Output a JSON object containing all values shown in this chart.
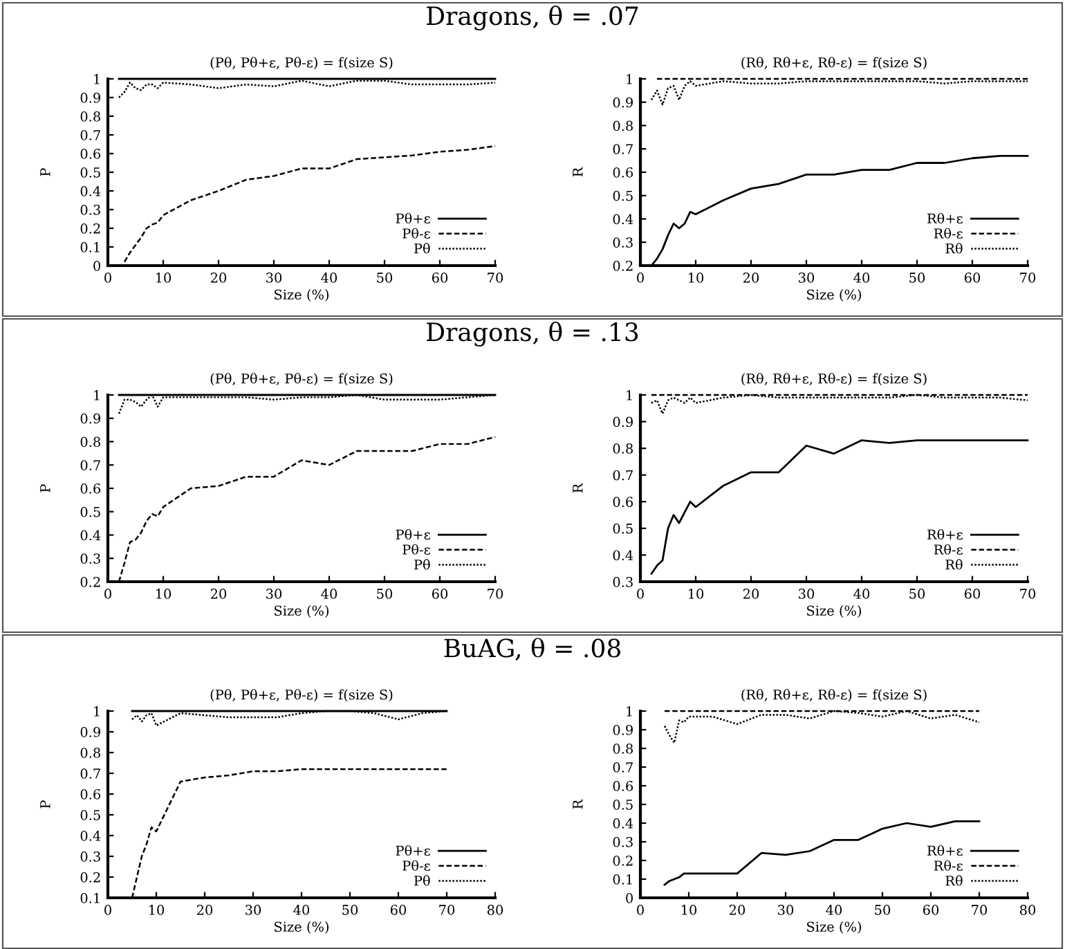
{
  "chart_data": [
    {
      "type": "line",
      "title": "Dragons, θ = .07",
      "subtitle": "(Pθ, Pθ+ε, Pθ-ε) = f(size S)",
      "xlabel": "Size (%)",
      "ylabel": "P",
      "xlim": [
        0,
        70
      ],
      "xticks": [
        0,
        10,
        20,
        30,
        40,
        50,
        60,
        70
      ],
      "ylim": [
        0,
        1
      ],
      "yticks": [
        0,
        0.1,
        0.2,
        0.3,
        0.4,
        0.5,
        0.6,
        0.7,
        0.8,
        0.9,
        1
      ],
      "legend": "bottom right",
      "grid": false,
      "x": [
        2,
        3,
        4,
        5,
        6,
        7,
        8,
        9,
        10,
        15,
        20,
        25,
        30,
        35,
        40,
        45,
        50,
        55,
        60,
        65,
        70
      ],
      "series": [
        {
          "name": "Pθ+ε",
          "color": "#000000",
          "line_style": "solid",
          "values": [
            1,
            1,
            1,
            1,
            1,
            1,
            1,
            1,
            1,
            1,
            1,
            1,
            1,
            1,
            1,
            1,
            1,
            1,
            1,
            1,
            1
          ]
        },
        {
          "name": "Pθ-ε",
          "color": "#000000",
          "line_style": "dashed",
          "values": [
            null,
            0.02,
            0.07,
            0.11,
            0.15,
            0.2,
            0.22,
            0.23,
            0.27,
            0.35,
            0.4,
            0.46,
            0.48,
            0.52,
            0.52,
            0.57,
            0.58,
            0.59,
            0.61,
            0.62,
            0.64
          ]
        },
        {
          "name": "Pθ",
          "color": "#000000",
          "line_style": "dotted",
          "values": [
            0.9,
            0.93,
            0.98,
            0.95,
            0.94,
            0.97,
            0.97,
            0.95,
            0.98,
            0.97,
            0.95,
            0.97,
            0.96,
            0.99,
            0.96,
            0.99,
            0.99,
            0.97,
            0.97,
            0.97,
            0.98
          ]
        }
      ]
    },
    {
      "type": "line",
      "subtitle": "(Rθ, Rθ+ε, Rθ-ε) = f(size S)",
      "xlabel": "Size (%)",
      "ylabel": "R",
      "xlim": [
        0,
        70
      ],
      "xticks": [
        0,
        10,
        20,
        30,
        40,
        50,
        60,
        70
      ],
      "ylim": [
        0.2,
        1
      ],
      "yticks": [
        0.2,
        0.3,
        0.4,
        0.5,
        0.6,
        0.7,
        0.8,
        0.9,
        1
      ],
      "legend": "bottom right",
      "grid": false,
      "x": [
        2,
        3,
        4,
        5,
        6,
        7,
        8,
        9,
        10,
        15,
        20,
        25,
        30,
        35,
        40,
        45,
        50,
        55,
        60,
        65,
        70
      ],
      "series": [
        {
          "name": "Rθ+ε",
          "color": "#000000",
          "line_style": "solid",
          "values": [
            0.2,
            0.23,
            0.27,
            0.33,
            0.38,
            0.36,
            0.38,
            0.43,
            0.42,
            0.48,
            0.53,
            0.55,
            0.59,
            0.59,
            0.61,
            0.61,
            0.64,
            0.64,
            0.66,
            0.67,
            0.67
          ]
        },
        {
          "name": "Rθ-ε",
          "color": "#000000",
          "line_style": "dashed",
          "values": [
            null,
            1,
            1,
            1,
            1,
            1,
            1,
            1,
            1,
            1,
            1,
            1,
            1,
            1,
            1,
            1,
            1,
            1,
            1,
            1,
            1
          ]
        },
        {
          "name": "Rθ",
          "color": "#000000",
          "line_style": "dotted",
          "values": [
            0.91,
            0.95,
            0.89,
            0.96,
            0.97,
            0.91,
            0.97,
            0.99,
            0.97,
            0.99,
            0.98,
            0.98,
            0.99,
            0.99,
            0.99,
            0.99,
            0.99,
            0.98,
            0.99,
            0.99,
            0.99
          ]
        }
      ]
    },
    {
      "type": "line",
      "title": "Dragons, θ = .13",
      "subtitle": "(Pθ, Pθ+ε, Pθ-ε) = f(size S)",
      "xlabel": "Size (%)",
      "ylabel": "P",
      "xlim": [
        0,
        70
      ],
      "xticks": [
        0,
        10,
        20,
        30,
        40,
        50,
        60,
        70
      ],
      "ylim": [
        0.2,
        1
      ],
      "yticks": [
        0.2,
        0.3,
        0.4,
        0.5,
        0.6,
        0.7,
        0.8,
        0.9,
        1
      ],
      "legend": "bottom right",
      "grid": false,
      "x": [
        2,
        3,
        4,
        5,
        6,
        7,
        8,
        9,
        10,
        15,
        20,
        25,
        30,
        35,
        40,
        45,
        50,
        55,
        60,
        65,
        70
      ],
      "series": [
        {
          "name": "Pθ+ε",
          "color": "#000000",
          "line_style": "solid",
          "values": [
            1,
            1,
            1,
            1,
            1,
            1,
            1,
            1,
            1,
            1,
            1,
            1,
            1,
            1,
            1,
            1,
            1,
            1,
            1,
            1,
            1
          ]
        },
        {
          "name": "Pθ-ε",
          "color": "#000000",
          "line_style": "dashed",
          "values": [
            0.2,
            0.28,
            0.37,
            0.38,
            0.41,
            0.46,
            0.49,
            0.48,
            0.52,
            0.6,
            0.61,
            0.65,
            0.65,
            0.72,
            0.7,
            0.76,
            0.76,
            0.76,
            0.79,
            0.79,
            0.82
          ]
        },
        {
          "name": "Pθ",
          "color": "#000000",
          "line_style": "dotted",
          "values": [
            0.92,
            0.98,
            0.98,
            0.97,
            0.95,
            0.98,
            1,
            0.95,
            0.99,
            0.99,
            0.99,
            0.99,
            0.98,
            0.99,
            0.99,
            1,
            0.98,
            0.98,
            0.98,
            0.99,
            1
          ]
        }
      ]
    },
    {
      "type": "line",
      "subtitle": "(Rθ, Rθ+ε, Rθ-ε) = f(size S)",
      "xlabel": "Size (%)",
      "ylabel": "R",
      "xlim": [
        0,
        70
      ],
      "xticks": [
        0,
        10,
        20,
        30,
        40,
        50,
        60,
        70
      ],
      "ylim": [
        0.3,
        1
      ],
      "yticks": [
        0.3,
        0.4,
        0.5,
        0.6,
        0.7,
        0.8,
        0.9,
        1
      ],
      "legend": "bottom right",
      "grid": false,
      "x": [
        2,
        3,
        4,
        5,
        6,
        7,
        8,
        9,
        10,
        15,
        20,
        25,
        30,
        35,
        40,
        45,
        50,
        55,
        60,
        65,
        70
      ],
      "series": [
        {
          "name": "Rθ+ε",
          "color": "#000000",
          "line_style": "solid",
          "values": [
            0.33,
            0.36,
            0.38,
            0.5,
            0.55,
            0.52,
            0.56,
            0.6,
            0.58,
            0.66,
            0.71,
            0.71,
            0.81,
            0.78,
            0.83,
            0.82,
            0.83,
            0.83,
            0.83,
            0.83,
            0.83
          ]
        },
        {
          "name": "Rθ-ε",
          "color": "#000000",
          "line_style": "dashed",
          "values": [
            1,
            1,
            1,
            1,
            1,
            1,
            1,
            1,
            1,
            1,
            1,
            1,
            1,
            1,
            1,
            1,
            1,
            1,
            1,
            1,
            1
          ]
        },
        {
          "name": "Rθ",
          "color": "#000000",
          "line_style": "dotted",
          "values": [
            0.97,
            0.98,
            0.93,
            0.98,
            0.99,
            0.98,
            0.97,
            0.99,
            0.97,
            0.99,
            1,
            0.99,
            0.99,
            0.99,
            0.99,
            0.99,
            1,
            0.99,
            0.99,
            0.99,
            0.98
          ]
        }
      ]
    },
    {
      "type": "line",
      "title": "BuAG, θ = .08",
      "subtitle": "(Pθ, Pθ+ε, Pθ-ε) = f(size S)",
      "xlabel": "Size (%)",
      "ylabel": "P",
      "xlim": [
        0,
        80
      ],
      "xticks": [
        0,
        10,
        20,
        30,
        40,
        50,
        60,
        70,
        80
      ],
      "ylim": [
        0.1,
        1
      ],
      "yticks": [
        0.1,
        0.2,
        0.3,
        0.4,
        0.5,
        0.6,
        0.7,
        0.8,
        0.9,
        1
      ],
      "legend": "bottom right",
      "grid": false,
      "x": [
        5,
        6,
        7,
        8,
        9,
        10,
        15,
        20,
        25,
        30,
        35,
        40,
        45,
        50,
        55,
        60,
        65,
        70
      ],
      "series": [
        {
          "name": "Pθ+ε",
          "color": "#000000",
          "line_style": "solid",
          "values": [
            1,
            1,
            1,
            1,
            1,
            1,
            1,
            1,
            1,
            1,
            1,
            1,
            1,
            1,
            1,
            1,
            1,
            1
          ]
        },
        {
          "name": "Pθ-ε",
          "color": "#000000",
          "line_style": "dashed",
          "values": [
            0.1,
            0.2,
            0.3,
            0.36,
            0.44,
            0.42,
            0.66,
            0.68,
            0.69,
            0.71,
            0.71,
            0.72,
            0.72,
            0.72,
            0.72,
            0.72,
            0.72,
            0.72
          ]
        },
        {
          "name": "Pθ",
          "color": "#000000",
          "line_style": "dotted",
          "values": [
            0.96,
            0.98,
            0.95,
            0.98,
            0.99,
            0.93,
            0.99,
            0.98,
            0.97,
            0.97,
            0.97,
            0.99,
            1,
            1,
            0.99,
            0.96,
            0.99,
            1
          ]
        }
      ]
    },
    {
      "type": "line",
      "subtitle": "(Rθ, Rθ+ε, Rθ-ε) = f(size S)",
      "xlabel": "Size (%)",
      "ylabel": "R",
      "xlim": [
        0,
        80
      ],
      "xticks": [
        0,
        10,
        20,
        30,
        40,
        50,
        60,
        70,
        80
      ],
      "ylim": [
        0,
        1
      ],
      "yticks": [
        0,
        0.1,
        0.2,
        0.3,
        0.4,
        0.5,
        0.6,
        0.7,
        0.8,
        0.9,
        1
      ],
      "legend": "bottom right",
      "grid": false,
      "x": [
        5,
        6,
        7,
        8,
        9,
        10,
        15,
        20,
        25,
        30,
        35,
        40,
        45,
        50,
        55,
        60,
        65,
        70
      ],
      "series": [
        {
          "name": "Rθ+ε",
          "color": "#000000",
          "line_style": "solid",
          "values": [
            0.07,
            0.09,
            0.1,
            0.11,
            0.13,
            0.13,
            0.13,
            0.13,
            0.24,
            0.23,
            0.25,
            0.31,
            0.31,
            0.37,
            0.4,
            0.38,
            0.41,
            0.41
          ]
        },
        {
          "name": "Rθ-ε",
          "color": "#000000",
          "line_style": "dashed",
          "values": [
            1,
            1,
            1,
            1,
            1,
            1,
            1,
            1,
            1,
            1,
            1,
            1,
            1,
            1,
            1,
            1,
            1,
            1
          ]
        },
        {
          "name": "Rθ",
          "color": "#000000",
          "line_style": "dotted",
          "values": [
            0.92,
            0.87,
            0.83,
            0.95,
            0.94,
            0.97,
            0.97,
            0.93,
            0.98,
            0.98,
            0.96,
            1,
            0.99,
            0.97,
            1,
            0.96,
            0.98,
            0.94
          ]
        }
      ]
    }
  ]
}
